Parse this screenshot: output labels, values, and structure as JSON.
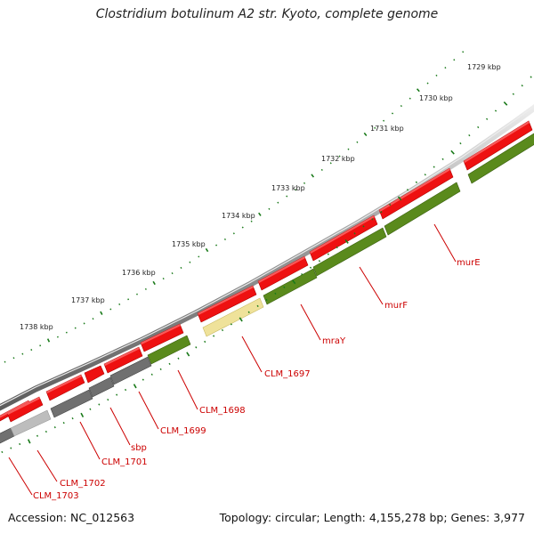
{
  "title": "Clostridium botulinum A2 str. Kyoto, complete genome",
  "footer": {
    "accession": "Accession: NC_012563",
    "stats": "Topology: circular; Length: 4,155,278 bp; Genes: 3,977"
  },
  "colors": {
    "forward_gene": "#ee1111",
    "reverse_gene": "#5a8a1c",
    "reverse_gray": "#707070",
    "light_gray": "#bdbdbd",
    "pale_yellow": "#efe29a",
    "tick_green": "#1a7a1a",
    "label_red": "#cc0000",
    "backbone": "#8c8c8c"
  },
  "ruler": {
    "unit": "kbp",
    "ticks": [
      "1738 kbp",
      "1737 kbp",
      "1736 kbp",
      "1735 kbp",
      "1734 kbp",
      "1733 kbp",
      "1732 kbp",
      "1731 kbp",
      "1730 kbp",
      "1729 kbp"
    ]
  },
  "gene_labels": [
    "CLM_1703",
    "CLM_1702",
    "CLM_1701",
    "sbp",
    "CLM_1699",
    "CLM_1698",
    "CLM_1697",
    "mraY",
    "murF",
    "murE"
  ]
}
